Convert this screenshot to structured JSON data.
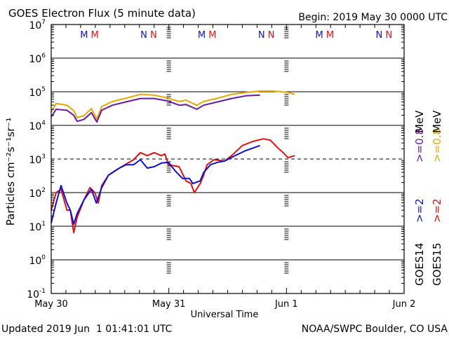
{
  "chart_data": {
    "type": "line",
    "title": "GOES Electron Flux (5 minute data)",
    "subtitle": "Begin: 2019 May 30 0000 UTC",
    "xlabel": "Universal Time",
    "ylabel": "Particles cm⁻²s⁻¹sr⁻¹",
    "x_units": "hours since 2019 May 30 0000 UTC",
    "xlim": [
      0,
      72
    ],
    "x_ticks": [
      {
        "h": 0,
        "label": "May 30"
      },
      {
        "h": 24,
        "label": "May 31"
      },
      {
        "h": 48,
        "label": "Jun 1"
      },
      {
        "h": 72,
        "label": "Jun 2"
      }
    ],
    "y_scale": "log",
    "y_units": "log10 flux",
    "ylim": [
      -1,
      7
    ],
    "y_ticks": [
      {
        "exp": 7,
        "base": "10",
        "sup": "7"
      },
      {
        "exp": 6,
        "base": "10",
        "sup": "6"
      },
      {
        "exp": 5,
        "base": "10",
        "sup": "5"
      },
      {
        "exp": 4,
        "base": "10",
        "sup": "4"
      },
      {
        "exp": 3,
        "base": "10",
        "sup": "3"
      },
      {
        "exp": 2,
        "base": "10",
        "sup": "2"
      },
      {
        "exp": 1,
        "base": "10",
        "sup": "1"
      },
      {
        "exp": 0,
        "base": "10",
        "sup": "0"
      },
      {
        "exp": -1,
        "base": "10",
        "sup": "-1"
      }
    ],
    "threshold_line": 3,
    "grid": true,
    "markers": [
      {
        "label": "M",
        "color": "#1010d0",
        "h": 6.7
      },
      {
        "label": "M",
        "color": "#e01010",
        "h": 8.9
      },
      {
        "label": "N",
        "color": "#1010d0",
        "h": 18.9
      },
      {
        "label": "N",
        "color": "#e01010",
        "h": 20.9
      },
      {
        "label": "M",
        "color": "#1010d0",
        "h": 30.7
      },
      {
        "label": "M",
        "color": "#e01010",
        "h": 32.9
      },
      {
        "label": "N",
        "color": "#1010d0",
        "h": 42.9
      },
      {
        "label": "N",
        "color": "#e01010",
        "h": 44.9
      },
      {
        "label": "M",
        "color": "#1010d0",
        "h": 54.7
      },
      {
        "label": "M",
        "color": "#e01010",
        "h": 56.9
      },
      {
        "label": "N",
        "color": "#1010d0",
        "h": 66.9
      },
      {
        "label": "N",
        "color": "#e01010",
        "h": 68.9
      }
    ],
    "legend": {
      "placement": "right",
      "columns": [
        {
          "sat": "GOES14",
          "e2": ">=2",
          "e2_color": "#1010d0",
          "e08": ">=0.8",
          "e08_color": "#6a1aa0",
          "unit": "MeV"
        },
        {
          "sat": "GOES15",
          "e2": ">=2",
          "e2_color": "#e01010",
          "e08": ">=0.8",
          "e08_color": "#e8a800",
          "unit": "MeV"
        }
      ]
    },
    "series": [
      {
        "name": "GOES15 >=0.8 MeV",
        "color": "#e8a800",
        "points": [
          [
            0,
            4.4
          ],
          [
            1.0,
            4.65
          ],
          [
            3.2,
            4.6
          ],
          [
            4.6,
            4.44
          ],
          [
            5.3,
            4.23
          ],
          [
            6.7,
            4.29
          ],
          [
            8.2,
            4.5
          ],
          [
            9.3,
            4.19
          ],
          [
            10.3,
            4.56
          ],
          [
            12.5,
            4.71
          ],
          [
            15.3,
            4.81
          ],
          [
            18.2,
            4.92
          ],
          [
            21.0,
            4.9
          ],
          [
            23.9,
            4.81
          ],
          [
            26.1,
            4.71
          ],
          [
            27.5,
            4.75
          ],
          [
            29.7,
            4.6
          ],
          [
            31.1,
            4.71
          ],
          [
            34.0,
            4.81
          ],
          [
            36.8,
            4.92
          ],
          [
            39.7,
            4.98
          ],
          [
            42.6,
            5.02
          ],
          [
            45.4,
            5.02
          ],
          [
            48.3,
            4.98
          ],
          [
            49.7,
            4.92
          ]
        ]
      },
      {
        "name": "GOES14 >=0.8 MeV",
        "color": "#6a1aa0",
        "points": [
          [
            0,
            4.25
          ],
          [
            1.0,
            4.48
          ],
          [
            3.2,
            4.45
          ],
          [
            4.6,
            4.3
          ],
          [
            5.3,
            4.12
          ],
          [
            6.7,
            4.18
          ],
          [
            8.2,
            4.38
          ],
          [
            9.3,
            4.1
          ],
          [
            10.3,
            4.45
          ],
          [
            12.5,
            4.6
          ],
          [
            15.3,
            4.7
          ],
          [
            18.2,
            4.8
          ],
          [
            21.0,
            4.8
          ],
          [
            23.9,
            4.72
          ],
          [
            26.1,
            4.6
          ],
          [
            27.5,
            4.62
          ],
          [
            29.7,
            4.48
          ],
          [
            31.1,
            4.6
          ],
          [
            34.0,
            4.7
          ],
          [
            36.8,
            4.8
          ],
          [
            39.7,
            4.88
          ],
          [
            42.6,
            4.9
          ]
        ]
      },
      {
        "name": "GOES15 >=2 MeV",
        "color": "#e01010",
        "points": [
          [
            0,
            1.48
          ],
          [
            1.0,
            2.0
          ],
          [
            2.0,
            2.1
          ],
          [
            3.2,
            1.48
          ],
          [
            3.9,
            1.48
          ],
          [
            4.6,
            0.81
          ],
          [
            5.3,
            1.27
          ],
          [
            6.7,
            1.79
          ],
          [
            7.9,
            2.15
          ],
          [
            8.9,
            2.0
          ],
          [
            9.6,
            1.69
          ],
          [
            10.3,
            2.21
          ],
          [
            11.7,
            2.52
          ],
          [
            13.9,
            2.73
          ],
          [
            16.8,
            2.98
          ],
          [
            18.2,
            3.19
          ],
          [
            19.6,
            3.1
          ],
          [
            21.0,
            3.19
          ],
          [
            22.5,
            3.1
          ],
          [
            23.2,
            3.15
          ],
          [
            23.9,
            2.83
          ],
          [
            26.1,
            2.77
          ],
          [
            27.5,
            2.35
          ],
          [
            28.5,
            2.27
          ],
          [
            29.2,
            2.0
          ],
          [
            30.4,
            2.27
          ],
          [
            31.1,
            2.52
          ],
          [
            31.8,
            2.83
          ],
          [
            33.2,
            2.98
          ],
          [
            35.4,
            2.94
          ],
          [
            36.8,
            3.1
          ],
          [
            39.0,
            3.4
          ],
          [
            41.1,
            3.52
          ],
          [
            43.3,
            3.6
          ],
          [
            44.7,
            3.56
          ],
          [
            46.1,
            3.35
          ],
          [
            47.6,
            3.15
          ],
          [
            48.3,
            3.04
          ],
          [
            49.7,
            3.1
          ]
        ]
      },
      {
        "name": "GOES14 >=2 MeV",
        "color": "#1010d0",
        "points": [
          [
            0,
            1.1
          ],
          [
            1.0,
            1.69
          ],
          [
            2.0,
            2.21
          ],
          [
            3.2,
            1.69
          ],
          [
            3.9,
            1.48
          ],
          [
            4.6,
            1.06
          ],
          [
            5.3,
            1.38
          ],
          [
            6.7,
            1.79
          ],
          [
            8.2,
            2.1
          ],
          [
            9.2,
            1.69
          ],
          [
            10.3,
            2.15
          ],
          [
            11.7,
            2.52
          ],
          [
            13.9,
            2.73
          ],
          [
            15.3,
            2.83
          ],
          [
            16.8,
            2.83
          ],
          [
            18.2,
            2.98
          ],
          [
            19.6,
            2.73
          ],
          [
            21.0,
            2.77
          ],
          [
            22.5,
            2.88
          ],
          [
            23.9,
            2.9
          ],
          [
            25.4,
            2.63
          ],
          [
            26.8,
            2.42
          ],
          [
            28.2,
            2.42
          ],
          [
            28.9,
            2.27
          ],
          [
            30.4,
            2.35
          ],
          [
            31.1,
            2.6
          ],
          [
            32.5,
            2.83
          ],
          [
            33.9,
            2.9
          ],
          [
            35.4,
            2.94
          ],
          [
            37.5,
            3.1
          ],
          [
            39.7,
            3.25
          ],
          [
            42.6,
            3.4
          ]
        ]
      }
    ]
  },
  "footer": {
    "updated": "Updated 2019 Jun  1 01:41:01 UTC",
    "credit": "NOAA/SWPC Boulder, CO USA"
  }
}
